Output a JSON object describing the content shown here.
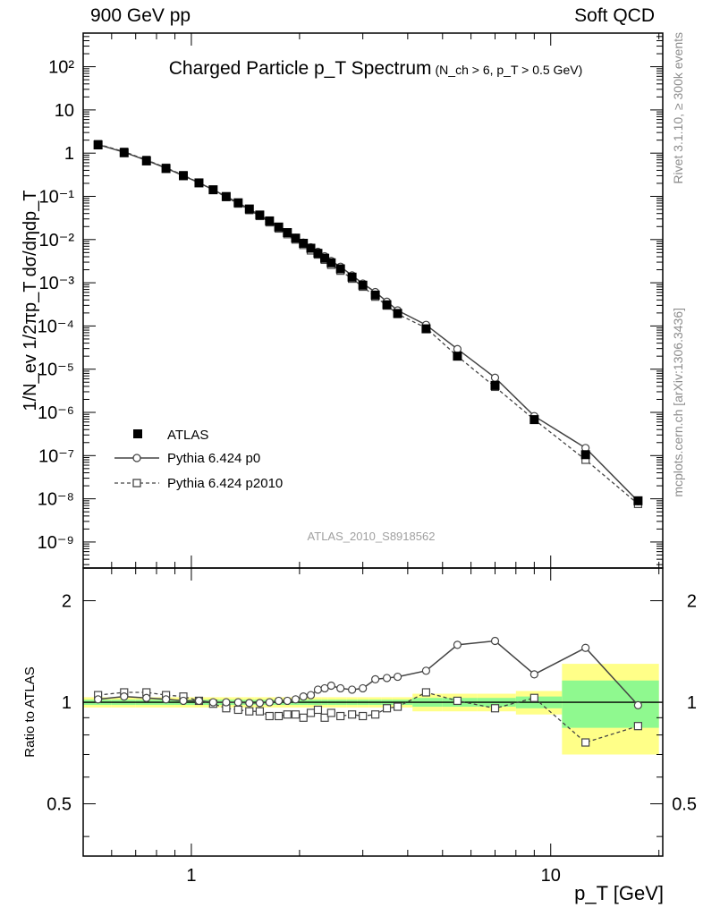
{
  "header": {
    "left": "900 GeV pp",
    "right": "Soft QCD"
  },
  "side_text": {
    "rivet": "Rivet 3.1.10, ≥ 300k events",
    "mcplots": "mcplots.cern.ch [arXiv:1306.3436]"
  },
  "watermark": "ATLAS_2010_S8918562",
  "colors": {
    "ref_band_green": "#8ff98f",
    "ref_band_yellow": "#ffff88",
    "p0_line": "#444444",
    "p2010_line": "#444444"
  },
  "chart_data": [
    {
      "type": "line",
      "title": "Charged Particle p_T Spectrum",
      "subtitle": "(N_ch > 6, p_T > 0.5 GeV)",
      "xlabel": "",
      "ylabel": "1/N_ev 1/2πp_T dσ/dηdp_T",
      "xscale": "log",
      "yscale": "log",
      "xlim": [
        0.5,
        20.5
      ],
      "ylim": [
        2.5e-10,
        600
      ],
      "legend_position": "bottom-left",
      "y_tick_labels": [
        "10^2",
        "10",
        "1",
        "10^-1",
        "10^-2",
        "10^-3",
        "10^-4",
        "10^-5",
        "10^-6",
        "10^-7",
        "10^-8",
        "10^-9"
      ],
      "x": [
        0.55,
        0.65,
        0.75,
        0.85,
        0.95,
        1.05,
        1.15,
        1.25,
        1.35,
        1.45,
        1.55,
        1.65,
        1.75,
        1.85,
        1.95,
        2.05,
        2.15,
        2.25,
        2.35,
        2.45,
        2.6,
        2.8,
        3.0,
        3.25,
        3.5,
        3.75,
        4.5,
        5.5,
        7.0,
        9.0,
        12.5,
        17.5
      ],
      "series": [
        {
          "name": "ATLAS",
          "marker": "filled-square",
          "values": [
            1.55,
            1.02,
            0.66,
            0.44,
            0.3,
            0.205,
            0.142,
            0.099,
            0.071,
            0.051,
            0.037,
            0.027,
            0.0195,
            0.0145,
            0.0108,
            0.0082,
            0.0063,
            0.0048,
            0.0037,
            0.0029,
            0.0021,
            0.00135,
            0.00088,
            0.00052,
            0.00031,
            0.000195,
            8.6e-05,
            2e-05,
            4.2e-06,
            6.8e-07,
            1.05e-07,
            9e-09
          ]
        },
        {
          "name": "Pythia 6.424 p0",
          "marker": "open-circle",
          "line": "solid",
          "values": [
            1.58,
            1.05,
            0.68,
            0.45,
            0.3,
            0.206,
            0.142,
            0.099,
            0.071,
            0.0508,
            0.0368,
            0.0271,
            0.0197,
            0.0147,
            0.011,
            0.0085,
            0.0066,
            0.0052,
            0.0041,
            0.0032,
            0.00235,
            0.00148,
            0.00096,
            0.00061,
            0.000365,
            0.000229,
            0.000106,
            2.92e-05,
            6.35e-06,
            8.2e-07,
            1.5e-07,
            8.8e-09
          ]
        },
        {
          "name": "Pythia 6.424 p2010",
          "marker": "open-square",
          "line": "dashed",
          "values": [
            1.62,
            1.08,
            0.7,
            0.46,
            0.31,
            0.207,
            0.141,
            0.096,
            0.068,
            0.048,
            0.035,
            0.025,
            0.018,
            0.0133,
            0.01,
            0.0075,
            0.0056,
            0.0045,
            0.0034,
            0.0026,
            0.0019,
            0.00124,
            0.00081,
            0.000476,
            0.000296,
            0.000189,
            9e-05,
            2e-05,
            3.9e-06,
            6.8e-07,
            8e-08,
            7.6e-09
          ]
        }
      ]
    },
    {
      "type": "line",
      "title": "",
      "xlabel": "p_T [GeV]",
      "ylabel": "Ratio to ATLAS",
      "xscale": "log",
      "yscale": "log",
      "xlim": [
        0.5,
        20.5
      ],
      "ylim": [
        0.35,
        2.5
      ],
      "x_tick_labels": [
        "1",
        "10"
      ],
      "y_tick_labels": [
        "0.5",
        "1",
        "2"
      ],
      "x": [
        0.55,
        0.65,
        0.75,
        0.85,
        0.95,
        1.05,
        1.15,
        1.25,
        1.35,
        1.45,
        1.55,
        1.65,
        1.75,
        1.85,
        1.95,
        2.05,
        2.15,
        2.25,
        2.35,
        2.45,
        2.6,
        2.8,
        3.0,
        3.25,
        3.5,
        3.75,
        4.5,
        5.5,
        7.0,
        9.0,
        12.5,
        17.5
      ],
      "series": [
        {
          "name": "Pythia 6.424 p0",
          "values": [
            1.02,
            1.04,
            1.03,
            1.02,
            1.01,
            1.01,
            1.0,
            1.0,
            1.0,
            0.995,
            0.995,
            1.0,
            1.01,
            1.01,
            1.02,
            1.04,
            1.05,
            1.09,
            1.1,
            1.12,
            1.1,
            1.09,
            1.1,
            1.17,
            1.18,
            1.19,
            1.24,
            1.48,
            1.52,
            1.21,
            1.45,
            0.98
          ]
        },
        {
          "name": "Pythia 6.424 p2010",
          "values": [
            1.05,
            1.07,
            1.07,
            1.05,
            1.04,
            1.01,
            0.99,
            0.96,
            0.95,
            0.94,
            0.94,
            0.91,
            0.91,
            0.92,
            0.92,
            0.9,
            0.93,
            0.95,
            0.9,
            0.93,
            0.91,
            0.92,
            0.91,
            0.92,
            0.96,
            0.97,
            1.07,
            1.01,
            0.96,
            1.03,
            0.76,
            0.85
          ]
        }
      ]
    }
  ]
}
